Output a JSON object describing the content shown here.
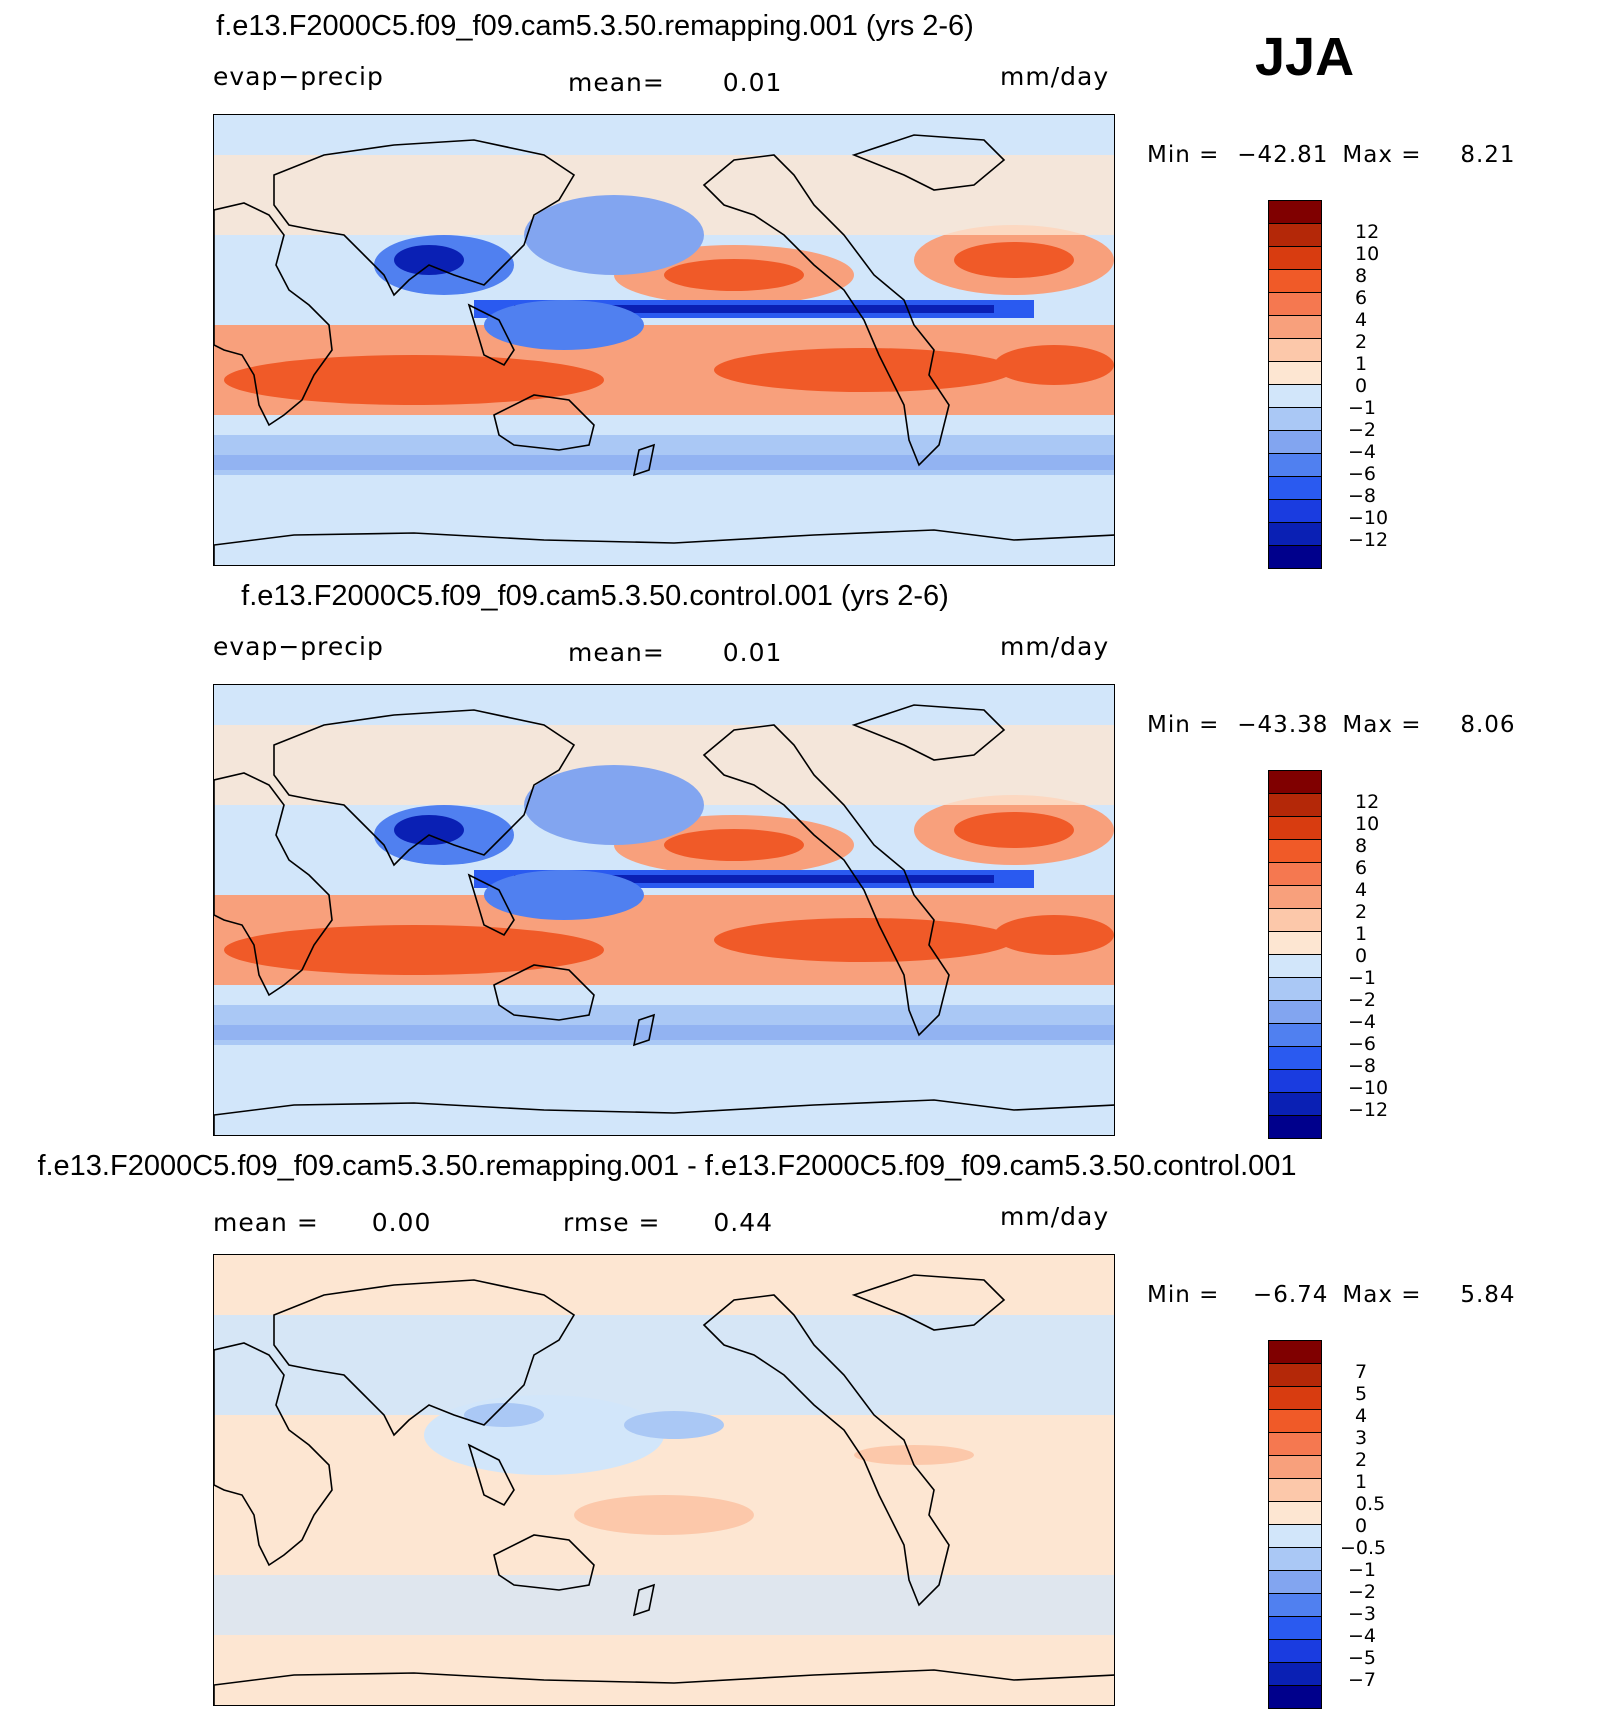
{
  "season": "JJA",
  "panels": [
    {
      "title": "f.e13.F2000C5.f09_f09.cam5.3.50.remapping.001 (yrs 2-6)",
      "left_label": "evap−precip",
      "mid_label": "mean=",
      "mid_value": "0.01",
      "units": "mm/day",
      "min_label": "Min  =",
      "min_value": "−42.81",
      "max_label": "Max  =",
      "max_value": "8.21",
      "colorbar_labels": [
        "12",
        "10",
        "8",
        "6",
        "4",
        "2",
        "1",
        "0",
        "−1",
        "−2",
        "−4",
        "−6",
        "−8",
        "−10",
        "−12"
      ]
    },
    {
      "title": "f.e13.F2000C5.f09_f09.cam5.3.50.control.001 (yrs 2-6)",
      "left_label": "evap−precip",
      "mid_label": "mean=",
      "mid_value": "0.01",
      "units": "mm/day",
      "min_label": "Min  =",
      "min_value": "−43.38",
      "max_label": "Max  =",
      "max_value": "8.06",
      "colorbar_labels": [
        "12",
        "10",
        "8",
        "6",
        "4",
        "2",
        "1",
        "0",
        "−1",
        "−2",
        "−4",
        "−6",
        "−8",
        "−10",
        "−12"
      ]
    },
    {
      "title": "f.e13.F2000C5.f09_f09.cam5.3.50.remapping.001 - f.e13.F2000C5.f09_f09.cam5.3.50.control.001",
      "left_label": "mean =",
      "left_value": "0.00",
      "mid_label": "rmse =",
      "mid_value": "0.44",
      "units": "mm/day",
      "min_label": "Min  =",
      "min_value": "−6.74",
      "max_label": "Max  =",
      "max_value": "5.84",
      "colorbar_labels": [
        "7",
        "5",
        "4",
        "3",
        "2",
        "1",
        "0.5",
        "0",
        "−0.5",
        "−1",
        "−2",
        "−3",
        "−4",
        "−5",
        "−7"
      ]
    }
  ],
  "colors": {
    "scale": [
      "#800000",
      "#b42808",
      "#d83c10",
      "#f05a28",
      "#f57850",
      "#f8a07c",
      "#fcc8aa",
      "#fde6d2",
      "#d2e6fa",
      "#aac8f5",
      "#82a5f0",
      "#5080f0",
      "#2a5af0",
      "#1a3ce0",
      "#0a20b4",
      "#00008c"
    ],
    "land_outline": "#000000"
  }
}
